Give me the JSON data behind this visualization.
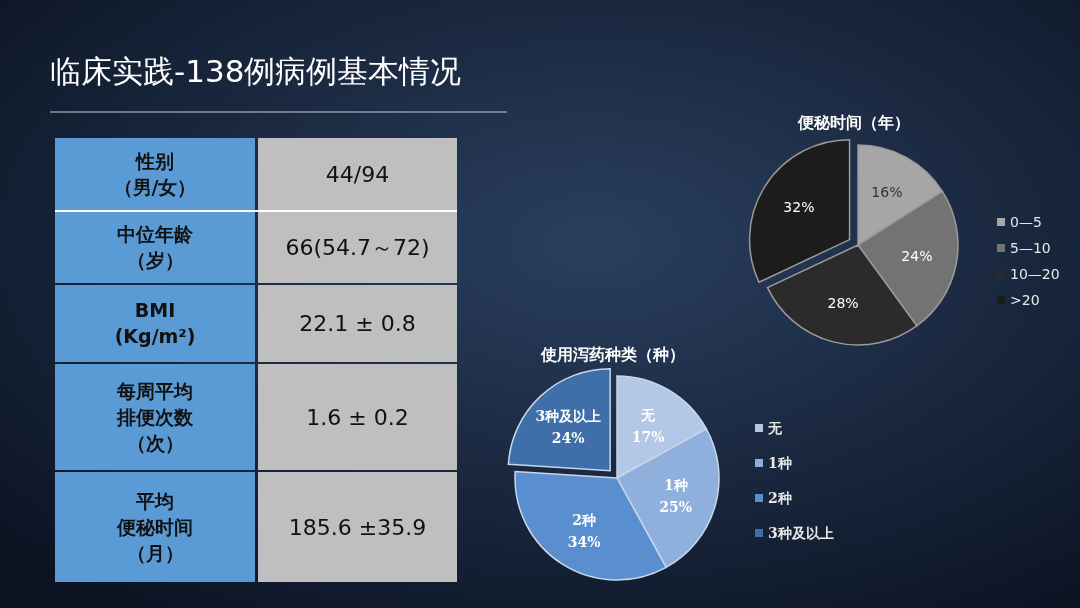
{
  "chart_data": [
    {
      "type": "other",
      "title": "临床实践-138例病例基本情况",
      "annotations": [
        "性别",
        "（男/女）",
        "44/94",
        "中位年龄",
        "（岁）",
        "66(54.7～72)",
        "BMI",
        "(Kg/m²)",
        "22.1 ± 0.8",
        "每周平均",
        "排便次数",
        "（次）",
        "1.6 ± 0.2",
        "平均",
        "便秘时间",
        "（月）",
        "185.6 ±35.9"
      ]
    },
    {
      "type": "pie",
      "title": "便秘时间（年）",
      "categories": [
        "0—5",
        "5—10",
        "10—20",
        ">20"
      ],
      "values": [
        16,
        24,
        28,
        32
      ],
      "value_labels": [
        "16%",
        "24%",
        "28%",
        "32%"
      ],
      "colors": [
        "#a6a6a6",
        "#737373",
        "#2b2b2b",
        "#1c1c1c"
      ],
      "legend": "right"
    },
    {
      "type": "pie",
      "title": "使用泻药种类（种）",
      "categories": [
        "无",
        "1种",
        "2种",
        "3种及以上"
      ],
      "values": [
        17,
        25,
        34,
        24
      ],
      "value_labels": [
        "17%",
        "25%",
        "34%",
        "24%"
      ],
      "colors": [
        "#b3c7e6",
        "#8fb0dc",
        "#5a8fcf",
        "#3f6fa8"
      ],
      "legend": "right"
    }
  ]
}
